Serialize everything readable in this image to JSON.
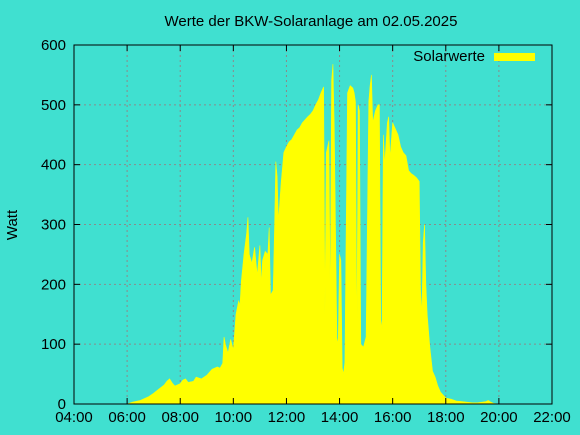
{
  "chart_data": {
    "type": "area",
    "title": "Werte der BKW-Solaranlage am 02.05.2025",
    "xlabel": "",
    "ylabel": "Watt",
    "x_tick_labels": [
      "04:00",
      "06:00",
      "08:00",
      "10:00",
      "12:00",
      "14:00",
      "16:00",
      "18:00",
      "20:00",
      "22:00"
    ],
    "x_range_hours": [
      4,
      22
    ],
    "ylim": [
      0,
      600
    ],
    "y_ticks": [
      0,
      100,
      200,
      300,
      400,
      500,
      600
    ],
    "grid": true,
    "legend_position": "top-right",
    "series": [
      {
        "name": "Solarwerte",
        "color": "#ffff00",
        "points": [
          [
            6.0,
            0
          ],
          [
            6.2,
            3
          ],
          [
            6.5,
            6
          ],
          [
            6.8,
            12
          ],
          [
            7.0,
            18
          ],
          [
            7.2,
            25
          ],
          [
            7.4,
            32
          ],
          [
            7.5,
            38
          ],
          [
            7.6,
            42
          ],
          [
            7.7,
            35
          ],
          [
            7.8,
            30
          ],
          [
            8.0,
            34
          ],
          [
            8.1,
            40
          ],
          [
            8.2,
            42
          ],
          [
            8.3,
            36
          ],
          [
            8.5,
            38
          ],
          [
            8.6,
            45
          ],
          [
            8.8,
            42
          ],
          [
            9.0,
            48
          ],
          [
            9.2,
            58
          ],
          [
            9.4,
            62
          ],
          [
            9.5,
            60
          ],
          [
            9.6,
            68
          ],
          [
            9.65,
            112
          ],
          [
            9.7,
            100
          ],
          [
            9.8,
            85
          ],
          [
            9.9,
            108
          ],
          [
            10.0,
            90
          ],
          [
            10.1,
            150
          ],
          [
            10.2,
            172
          ],
          [
            10.25,
            165
          ],
          [
            10.3,
            205
          ],
          [
            10.4,
            250
          ],
          [
            10.5,
            285
          ],
          [
            10.55,
            312
          ],
          [
            10.6,
            250
          ],
          [
            10.7,
            235
          ],
          [
            10.8,
            262
          ],
          [
            10.9,
            215
          ],
          [
            11.0,
            265
          ],
          [
            11.05,
            200
          ],
          [
            11.1,
            240
          ],
          [
            11.2,
            255
          ],
          [
            11.3,
            250
          ],
          [
            11.35,
            295
          ],
          [
            11.4,
            182
          ],
          [
            11.5,
            190
          ],
          [
            11.55,
            290
          ],
          [
            11.6,
            405
          ],
          [
            11.65,
            380
          ],
          [
            11.7,
            305
          ],
          [
            11.8,
            370
          ],
          [
            11.9,
            420
          ],
          [
            12.0,
            430
          ],
          [
            12.1,
            438
          ],
          [
            12.2,
            442
          ],
          [
            12.3,
            450
          ],
          [
            12.4,
            458
          ],
          [
            12.5,
            462
          ],
          [
            12.6,
            470
          ],
          [
            12.7,
            475
          ],
          [
            12.8,
            480
          ],
          [
            12.9,
            484
          ],
          [
            13.0,
            490
          ],
          [
            13.1,
            500
          ],
          [
            13.2,
            508
          ],
          [
            13.3,
            520
          ],
          [
            13.4,
            530
          ],
          [
            13.45,
            150
          ],
          [
            13.5,
            420
          ],
          [
            13.6,
            440
          ],
          [
            13.65,
            150
          ],
          [
            13.7,
            540
          ],
          [
            13.75,
            568
          ],
          [
            13.8,
            465
          ],
          [
            13.9,
            110
          ],
          [
            13.95,
            100
          ],
          [
            14.0,
            250
          ],
          [
            14.05,
            240
          ],
          [
            14.1,
            60
          ],
          [
            14.15,
            50
          ],
          [
            14.2,
            70
          ],
          [
            14.3,
            520
          ],
          [
            14.4,
            532
          ],
          [
            14.5,
            528
          ],
          [
            14.55,
            520
          ],
          [
            14.6,
            505
          ],
          [
            14.65,
            85
          ],
          [
            14.7,
            500
          ],
          [
            14.75,
            490
          ],
          [
            14.8,
            100
          ],
          [
            14.9,
            95
          ],
          [
            15.0,
            112
          ],
          [
            15.1,
            505
          ],
          [
            15.15,
            532
          ],
          [
            15.2,
            550
          ],
          [
            15.25,
            470
          ],
          [
            15.35,
            490
          ],
          [
            15.45,
            500
          ],
          [
            15.5,
            500
          ],
          [
            15.55,
            140
          ],
          [
            15.6,
            125
          ],
          [
            15.65,
            450
          ],
          [
            15.7,
            400
          ],
          [
            15.8,
            470
          ],
          [
            15.85,
            480
          ],
          [
            15.9,
            410
          ],
          [
            16.0,
            470
          ],
          [
            16.1,
            460
          ],
          [
            16.2,
            450
          ],
          [
            16.3,
            430
          ],
          [
            16.4,
            420
          ],
          [
            16.5,
            415
          ],
          [
            16.6,
            390
          ],
          [
            16.7,
            385
          ],
          [
            16.8,
            382
          ],
          [
            16.9,
            378
          ],
          [
            17.0,
            372
          ],
          [
            17.05,
            190
          ],
          [
            17.1,
            150
          ],
          [
            17.15,
            270
          ],
          [
            17.2,
            300
          ],
          [
            17.25,
            200
          ],
          [
            17.3,
            150
          ],
          [
            17.4,
            95
          ],
          [
            17.5,
            55
          ],
          [
            17.6,
            45
          ],
          [
            17.7,
            30
          ],
          [
            17.8,
            20
          ],
          [
            17.9,
            15
          ],
          [
            18.0,
            10
          ],
          [
            18.2,
            8
          ],
          [
            18.4,
            5
          ],
          [
            18.6,
            4
          ],
          [
            18.8,
            3
          ],
          [
            19.0,
            2
          ],
          [
            19.2,
            2
          ],
          [
            19.5,
            4
          ],
          [
            19.6,
            6
          ],
          [
            19.7,
            3
          ],
          [
            19.8,
            1
          ],
          [
            20.0,
            0
          ]
        ]
      }
    ]
  }
}
